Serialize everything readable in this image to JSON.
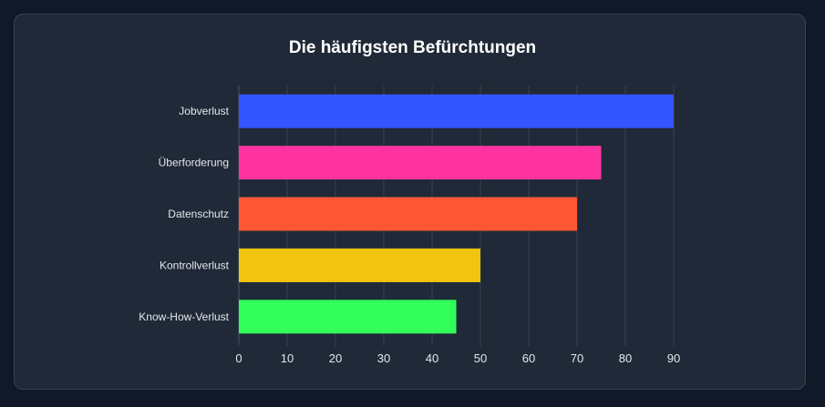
{
  "chart_data": {
    "type": "bar",
    "orientation": "horizontal",
    "title": "Die häufigsten Befürchtungen",
    "categories": [
      "Jobverlust",
      "Überforderung",
      "Datenschutz",
      "Kontrollverlust",
      "Know-How-Verlust"
    ],
    "values": [
      90,
      75,
      70,
      50,
      45
    ],
    "colors": [
      "#3355ff",
      "#ff33a0",
      "#ff5733",
      "#f1c40f",
      "#33ff5a"
    ],
    "xlim": [
      0,
      90
    ],
    "xticks": [
      "0",
      "10",
      "20",
      "30",
      "40",
      "50",
      "60",
      "70",
      "80",
      "90"
    ],
    "xlabel": "",
    "ylabel": "",
    "grid": true,
    "legend": "none"
  }
}
